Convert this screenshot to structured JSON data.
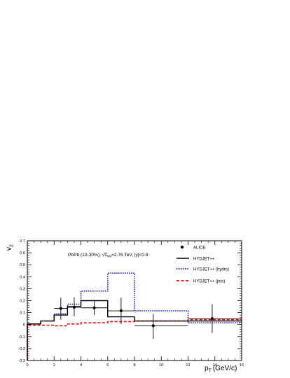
{
  "chart_data": {
    "type": "line",
    "xlim": [
      0,
      16
    ],
    "ylim": [
      -0.3,
      0.7
    ],
    "x_ticks": [
      "0",
      "2",
      "4",
      "6",
      "8",
      "10",
      "12",
      "14",
      "16"
    ],
    "y_ticks": [
      "-0.3",
      "-0.2",
      "-0.1",
      "0",
      "0.1",
      "0.2",
      "0.3",
      "0.4",
      "0.5",
      "0.6",
      "0.7"
    ],
    "xlabel_main": "p",
    "xlabel_sub": "T",
    "xlabel_unit": "(GeV/c)",
    "ylabel_main": "v",
    "ylabel_sub": "2",
    "annotation": {
      "prefix": "PbPb (10-30%), ",
      "radical": "√",
      "s": "s",
      "sub": "NN",
      "suffix": "=2.76 TeV, |y|<0.8"
    },
    "legend": {
      "position": "top-right",
      "entries": [
        "ALICE",
        "HYDJET++",
        "HYDJET++ (hydro)",
        "HYDJET++ (jets)"
      ]
    },
    "colors": {
      "alice": "#000000",
      "hydjet": "#000000",
      "hydro": "#1a1acc",
      "jets": "#ff0000"
    },
    "bin_edges": [
      0,
      1,
      2,
      3,
      4,
      6,
      8,
      12,
      16
    ],
    "series": [
      {
        "name": "HYDJET++",
        "style": "solid",
        "values": [
          0.005,
          0.03,
          0.08,
          0.15,
          0.2,
          0.065,
          0.03,
          0.03
        ]
      },
      {
        "name": "HYDJET++ (hydro)",
        "style": "dotted",
        "values": [
          0.005,
          0.03,
          0.09,
          0.17,
          0.28,
          0.43,
          0.115,
          0.015
        ]
      },
      {
        "name": "HYDJET++ (jets)",
        "style": "dashed",
        "values": [
          -0.005,
          -0.005,
          -0.01,
          0.005,
          0.015,
          0.025,
          0.03,
          0.04
        ]
      }
    ],
    "alice_points": [
      {
        "x": 2.5,
        "y": 0.135,
        "xlow": 2.0,
        "xhigh": 3.0,
        "ylow": 0.04,
        "yhigh": 0.225
      },
      {
        "x": 3.5,
        "y": 0.145,
        "xlow": 3.0,
        "xhigh": 4.0,
        "ylow": 0.07,
        "yhigh": 0.23
      },
      {
        "x": 5.0,
        "y": 0.14,
        "xlow": 4.0,
        "xhigh": 6.0,
        "ylow": 0.08,
        "yhigh": 0.2
      },
      {
        "x": 7.0,
        "y": 0.115,
        "xlow": 6.0,
        "xhigh": 8.0,
        "ylow": 0.005,
        "yhigh": 0.225
      },
      {
        "x": 9.4,
        "y": -0.01,
        "xlow": 8.0,
        "xhigh": 12.0,
        "ylow": -0.12,
        "yhigh": 0.09
      },
      {
        "x": 13.8,
        "y": 0.05,
        "xlow": 12.0,
        "xhigh": 16.0,
        "ylow": -0.07,
        "yhigh": 0.17
      }
    ]
  }
}
